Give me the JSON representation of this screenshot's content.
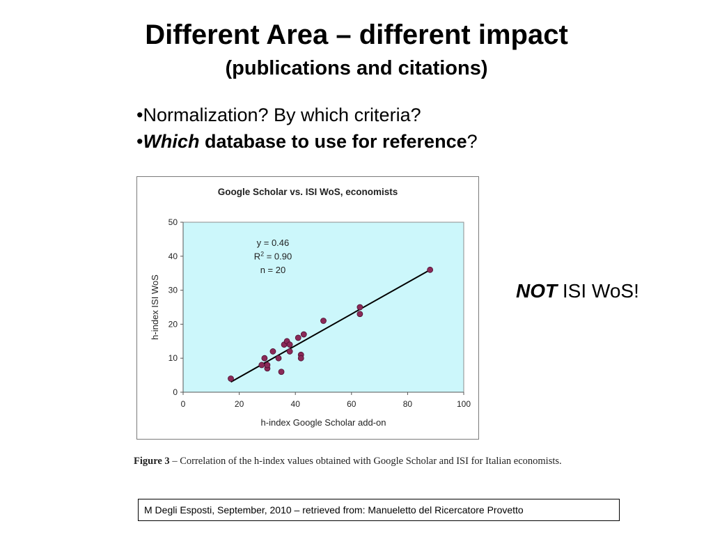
{
  "slide": {
    "title": "Different Area – different impact",
    "subtitle": "(publications and citations)",
    "bullets": {
      "item1": "•Normalization? By which criteria?",
      "item2_bullet": "•",
      "item2_em": "Which",
      "item2_strong": " database to use for reference",
      "item2_tail": "?"
    },
    "note_strong": "NOT",
    "note_rest": " ISI WoS!",
    "caption_label": "Figure 3",
    "caption_text": " – Correlation of the h-index values obtained with Google Scholar and ISI for Italian economists.",
    "source": "M Degli Esposti, September, 2010 – retrieved from: Manueletto del Ricercatore Provetto"
  },
  "chart_data": {
    "type": "scatter",
    "title": "Google Scholar vs. ISI WoS, economists",
    "xlabel": "h-index Google Scholar add-on",
    "ylabel": "h-index ISI WoS",
    "xlim": [
      0,
      100
    ],
    "ylim": [
      0,
      50
    ],
    "xticks": [
      0,
      20,
      40,
      60,
      80,
      100
    ],
    "yticks": [
      0,
      10,
      20,
      30,
      40,
      50
    ],
    "grid": false,
    "legend": "none",
    "annotation": {
      "eq": "y = 0.46",
      "r2_prefix": "R",
      "r2_sup": "2",
      "r2_rest": " = 0.90",
      "n": "n =  20"
    },
    "points": [
      {
        "x": 17,
        "y": 4
      },
      {
        "x": 28,
        "y": 8
      },
      {
        "x": 29,
        "y": 10
      },
      {
        "x": 30,
        "y": 7
      },
      {
        "x": 30,
        "y": 8
      },
      {
        "x": 32,
        "y": 12
      },
      {
        "x": 34,
        "y": 10
      },
      {
        "x": 35,
        "y": 6
      },
      {
        "x": 36,
        "y": 14
      },
      {
        "x": 37,
        "y": 15
      },
      {
        "x": 38,
        "y": 12
      },
      {
        "x": 38,
        "y": 14
      },
      {
        "x": 41,
        "y": 16
      },
      {
        "x": 42,
        "y": 11
      },
      {
        "x": 42,
        "y": 10
      },
      {
        "x": 43,
        "y": 17
      },
      {
        "x": 50,
        "y": 21
      },
      {
        "x": 63,
        "y": 25
      },
      {
        "x": 63,
        "y": 23
      },
      {
        "x": 88,
        "y": 36
      }
    ],
    "trendline": [
      {
        "x": 17,
        "y": 3
      },
      {
        "x": 88,
        "y": 36
      }
    ],
    "colors": {
      "plot_bg": "#ccf7fb",
      "point": "#8b2a58",
      "point_stroke": "#4a1030",
      "line": "#000000"
    }
  }
}
